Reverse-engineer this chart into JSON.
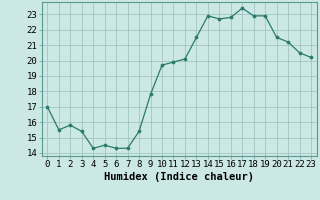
{
  "x": [
    0,
    1,
    2,
    3,
    4,
    5,
    6,
    7,
    8,
    9,
    10,
    11,
    12,
    13,
    14,
    15,
    16,
    17,
    18,
    19,
    20,
    21,
    22,
    23
  ],
  "y": [
    17,
    15.5,
    15.8,
    15.4,
    14.3,
    14.5,
    14.3,
    14.3,
    15.4,
    17.8,
    19.7,
    19.9,
    20.1,
    21.5,
    22.9,
    22.7,
    22.8,
    23.4,
    22.9,
    22.9,
    21.5,
    21.2,
    20.5,
    20.2
  ],
  "line_color": "#2a7a6e",
  "marker_color": "#2a7a6e",
  "bg_color": "#cce8e4",
  "grid_color": "#9bbfbb",
  "xlabel": "Humidex (Indice chaleur)",
  "xlim": [
    -0.5,
    23.5
  ],
  "ylim": [
    13.8,
    23.8
  ],
  "yticks": [
    14,
    15,
    16,
    17,
    18,
    19,
    20,
    21,
    22,
    23
  ],
  "xticks": [
    0,
    1,
    2,
    3,
    4,
    5,
    6,
    7,
    8,
    9,
    10,
    11,
    12,
    13,
    14,
    15,
    16,
    17,
    18,
    19,
    20,
    21,
    22,
    23
  ],
  "tick_fontsize": 6.5,
  "label_fontsize": 7.5
}
